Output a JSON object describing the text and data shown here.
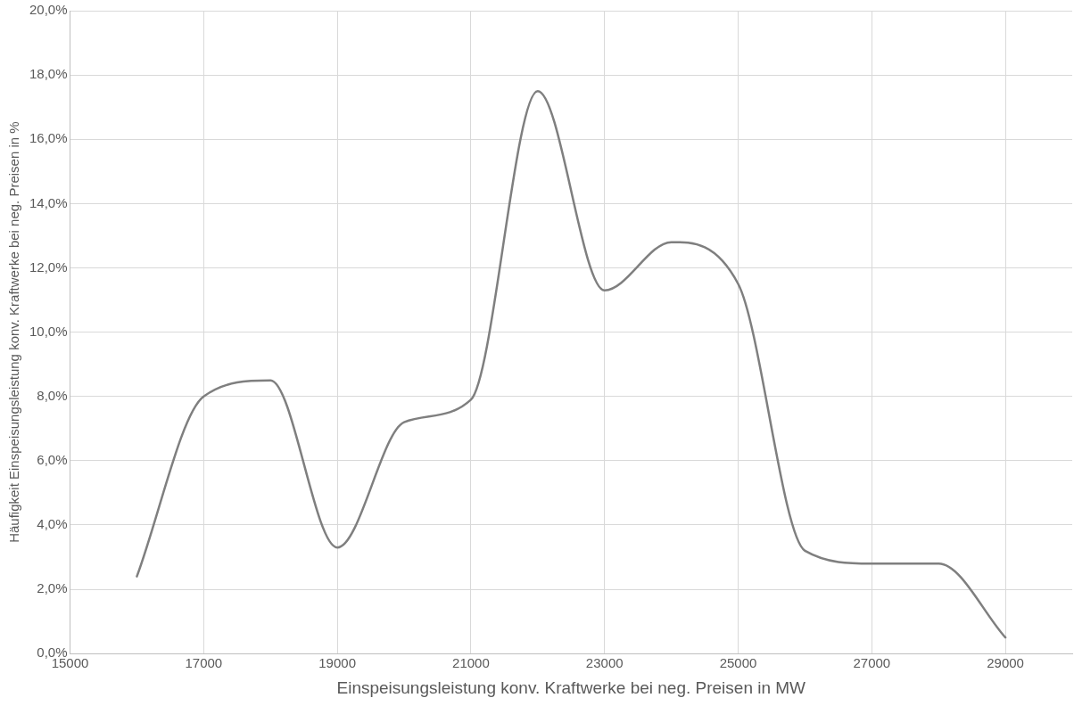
{
  "chart_data": {
    "type": "line",
    "xlabel": "Einspeisungsleistung konv. Kraftwerke bei neg. Preisen in MW",
    "ylabel": "Häufigkeit Einspeisungsleistung konv. Kraftwerke bei neg. Preisen in %",
    "x": [
      16000,
      17000,
      18000,
      19000,
      20000,
      21000,
      22000,
      23000,
      24000,
      25000,
      26000,
      27000,
      28000,
      29000
    ],
    "series": [
      {
        "color": "#7f7f7f",
        "values": [
          2.4,
          8.0,
          8.5,
          3.3,
          7.2,
          7.9,
          17.5,
          11.3,
          12.8,
          11.5,
          3.2,
          2.8,
          2.8,
          0.5
        ]
      }
    ],
    "xlim": [
      15000,
      30000
    ],
    "xticks": [
      15000,
      17000,
      19000,
      21000,
      23000,
      25000,
      27000,
      29000
    ],
    "ylim": [
      0,
      20
    ],
    "yticks": [
      {
        "value": 0,
        "label": "0,0%"
      },
      {
        "value": 2,
        "label": "2,0%"
      },
      {
        "value": 4,
        "label": "4,0%"
      },
      {
        "value": 6,
        "label": "6,0%"
      },
      {
        "value": 8,
        "label": "8,0%"
      },
      {
        "value": 10,
        "label": "10,0%"
      },
      {
        "value": 12,
        "label": "12,0%"
      },
      {
        "value": 14,
        "label": "14,0%"
      },
      {
        "value": 16,
        "label": "16,0%"
      },
      {
        "value": 18,
        "label": "18,0%"
      },
      {
        "value": 20,
        "label": "20,0%"
      }
    ],
    "grid": true,
    "legend": false,
    "marker": "none",
    "line_style": "solid"
  }
}
